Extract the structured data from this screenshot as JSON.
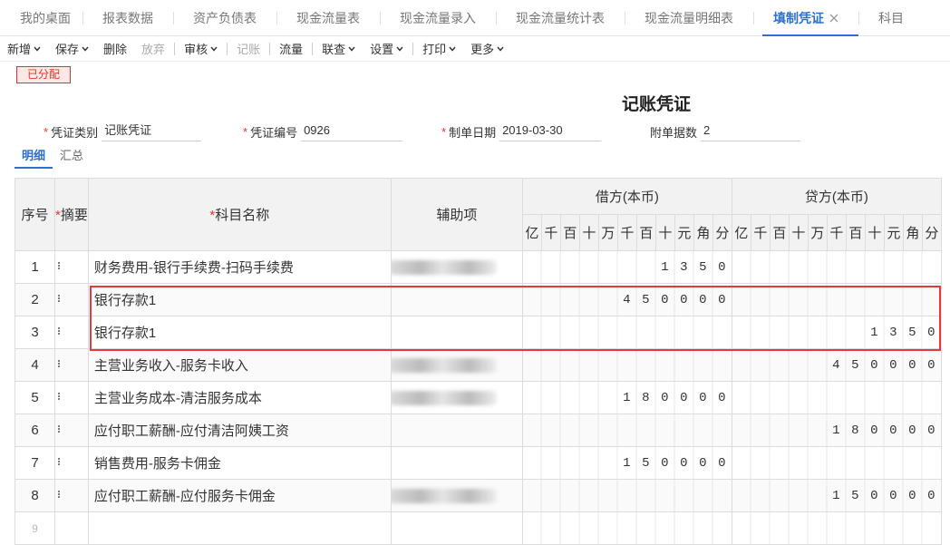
{
  "tabs": {
    "items": [
      "我的桌面",
      "报表数据",
      "资产负债表",
      "现金流量表",
      "现金流量录入",
      "现金流量统计表",
      "现金流量明细表",
      "填制凭证",
      "科目"
    ],
    "active": 7
  },
  "toolbar": [
    {
      "label": "新增",
      "dropdown": true
    },
    {
      "label": "保存",
      "dropdown": true
    },
    {
      "label": "删除"
    },
    {
      "label": "放弃",
      "disabled": true,
      "separator_after": true
    },
    {
      "label": "审核",
      "dropdown": true,
      "separator_after": true
    },
    {
      "label": "记账",
      "disabled": true,
      "separator_after": true
    },
    {
      "label": "流量",
      "separator_after": true
    },
    {
      "label": "联查",
      "dropdown": true
    },
    {
      "label": "设置",
      "dropdown": true,
      "separator_after": true
    },
    {
      "label": "打印",
      "dropdown": true
    },
    {
      "label": "更多",
      "dropdown": true
    }
  ],
  "status": "已分配",
  "title": "记账凭证",
  "required_mark": "*",
  "fields": [
    {
      "label": "凭证类别",
      "value": "记账凭证",
      "required": true
    },
    {
      "label": "凭证编号",
      "value": "0926",
      "required": true
    },
    {
      "label": "制单日期",
      "value": "2019-03-30",
      "required": true
    },
    {
      "label": "附单据数",
      "value": "2"
    }
  ],
  "subtabs": {
    "items": [
      "明细",
      "汇总"
    ],
    "active": 0
  },
  "table": {
    "headers": {
      "no": "序号",
      "summary": "摘要",
      "subject": "科目名称",
      "aux": "辅助项",
      "debit": "借方(本币)",
      "credit": "贷方(本币)"
    },
    "units": [
      "亿",
      "千",
      "百",
      "十",
      "万",
      "千",
      "百",
      "十",
      "元",
      "角",
      "分"
    ],
    "rows": [
      {
        "no": "1",
        "subject": "财务费用-银行手续费-扫码手续费",
        "aux_blurred": true,
        "debit": 1350,
        "credit": null
      },
      {
        "no": "2",
        "subject": "银行存款1",
        "aux_blurred": false,
        "debit": 450000,
        "credit": null
      },
      {
        "no": "3",
        "subject": "银行存款1",
        "aux_blurred": false,
        "debit": null,
        "credit": 1350
      },
      {
        "no": "4",
        "subject": "主营业务收入-服务卡收入",
        "aux_blurred": true,
        "debit": null,
        "credit": 450000
      },
      {
        "no": "5",
        "subject": "主营业务成本-清洁服务成本",
        "aux_blurred": true,
        "debit": 180000,
        "credit": null
      },
      {
        "no": "6",
        "subject": "应付职工薪酬-应付清洁阿姨工资",
        "aux_blurred": false,
        "debit": null,
        "credit": 180000
      },
      {
        "no": "7",
        "subject": "销售费用-服务卡佣金",
        "aux_blurred": false,
        "debit": 150000,
        "credit": null
      },
      {
        "no": "8",
        "subject": "应付职工薪酬-应付服务卡佣金",
        "aux_blurred": true,
        "debit": null,
        "credit": 150000
      },
      {
        "no": "9",
        "subject": null,
        "aux_blurred": false,
        "debit": null,
        "credit": null,
        "placeholder": true
      }
    ],
    "highlight_rows": [
      1,
      2
    ]
  }
}
